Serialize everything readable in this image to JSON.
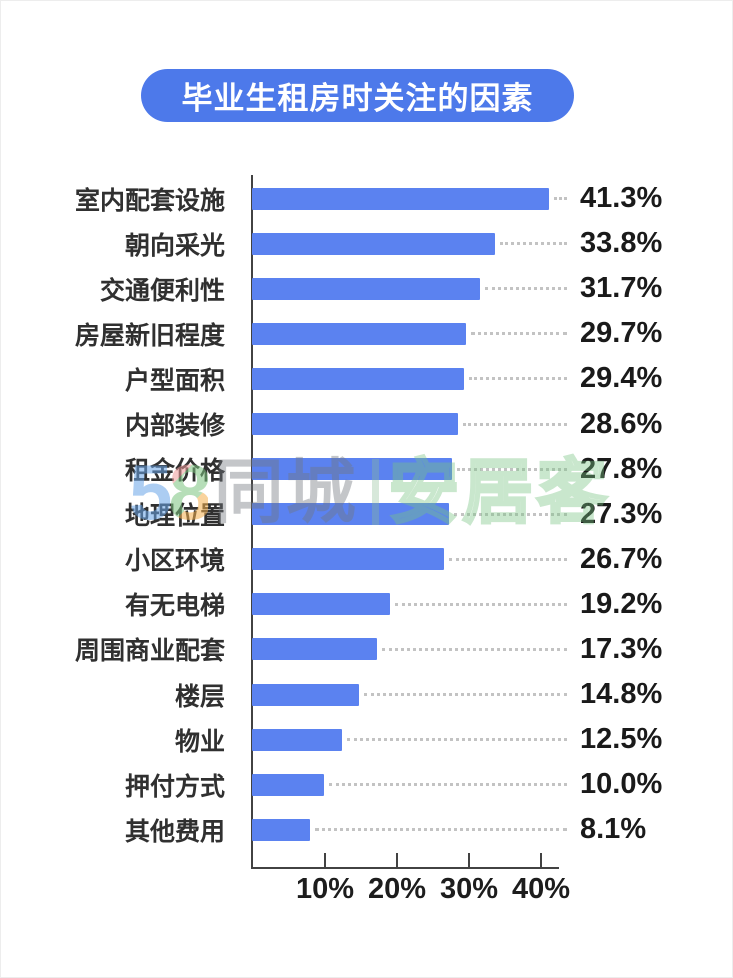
{
  "title": "毕业生租房时关注的因素",
  "colors": {
    "bar": "#5b82f0",
    "title_bg": "#4d79ea",
    "axis": "#424242",
    "value_text": "#1a1a1a",
    "category_text": "#303030",
    "leader_dots": "#c3c3c3"
  },
  "watermark": {
    "logo_digit_5": "5",
    "logo_digit_8": "8",
    "text_left": "同城",
    "text_right": "安居客"
  },
  "chart_data": {
    "type": "bar",
    "orientation": "horizontal",
    "title": "毕业生租房时关注的因素",
    "categories": [
      "室内配套设施",
      "朝向采光",
      "交通便利性",
      "房屋新旧程度",
      "户型面积",
      "内部装修",
      "租金价格",
      "地理位置",
      "小区环境",
      "有无电梯",
      "周围商业配套",
      "楼层",
      "物业",
      "押付方式",
      "其他费用"
    ],
    "values": [
      41.3,
      33.8,
      31.7,
      29.7,
      29.4,
      28.6,
      27.8,
      27.3,
      26.7,
      19.2,
      17.3,
      14.8,
      12.5,
      10.0,
      8.1
    ],
    "value_labels": [
      "41.3%",
      "33.8%",
      "31.7%",
      "29.7%",
      "29.4%",
      "28.6%",
      "27.8%",
      "27.3%",
      "26.7%",
      "19.2%",
      "17.3%",
      "14.8%",
      "12.5%",
      "10.0%",
      "8.1%"
    ],
    "xlabel": "",
    "ylabel": "",
    "xticks": [
      10,
      20,
      30,
      40
    ],
    "xtick_labels": [
      "10%",
      "20%",
      "30%",
      "40%"
    ],
    "xlim": [
      0,
      42.5
    ],
    "grid": false,
    "legend": false
  }
}
